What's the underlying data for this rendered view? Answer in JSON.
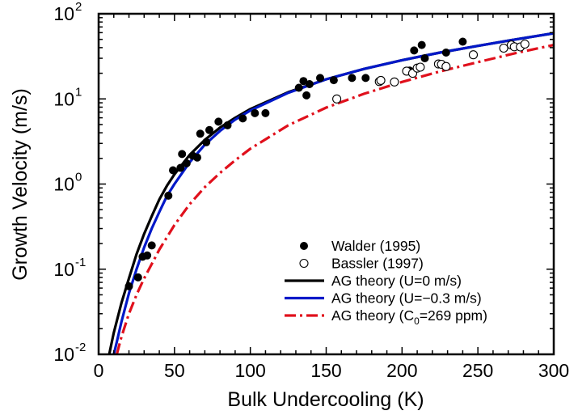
{
  "chart_data": {
    "type": "scatter",
    "title": "",
    "xlabel": "Bulk Undercooling (K)",
    "ylabel": "Growth Velocity (m/s)",
    "xlim": [
      0,
      300
    ],
    "ylim": [
      0.01,
      100
    ],
    "yscale": "log",
    "grid": false,
    "legend_position": "bottom-right",
    "x_ticks": [
      0,
      50,
      100,
      150,
      200,
      250,
      300
    ],
    "x_tick_labels": [
      "0",
      "50",
      "100",
      "150",
      "200",
      "250",
      "300"
    ],
    "y_ticks": [
      0.01,
      0.1,
      1,
      10,
      100
    ],
    "y_tick_labels": [
      {
        "base": "10",
        "exp": "-2"
      },
      {
        "base": "10",
        "exp": "-1"
      },
      {
        "base": "10",
        "exp": "0"
      },
      {
        "base": "10",
        "exp": "1"
      },
      {
        "base": "10",
        "exp": "2"
      }
    ],
    "series": [
      {
        "name": "Walder (1995)",
        "kind": "scatter",
        "marker": "filled-circle",
        "color": "#000000",
        "points": [
          [
            20,
            0.063
          ],
          [
            26,
            0.08
          ],
          [
            29,
            0.14
          ],
          [
            32,
            0.145
          ],
          [
            35,
            0.19
          ],
          [
            46,
            0.73
          ],
          [
            49,
            1.45
          ],
          [
            54,
            1.55
          ],
          [
            55,
            2.25
          ],
          [
            58,
            1.75
          ],
          [
            62,
            2.15
          ],
          [
            65,
            2.05
          ],
          [
            67,
            3.9
          ],
          [
            71,
            3.1
          ],
          [
            73,
            4.3
          ],
          [
            79,
            5.4
          ],
          [
            85,
            4.9
          ],
          [
            95,
            5.9
          ],
          [
            103,
            6.8
          ],
          [
            110,
            6.8
          ],
          [
            132,
            13.5
          ],
          [
            135,
            16.2
          ],
          [
            137,
            11.0
          ],
          [
            139,
            14.9
          ],
          [
            146,
            17.6
          ],
          [
            155,
            16.6
          ],
          [
            167,
            17.6
          ],
          [
            176,
            17.6
          ],
          [
            205,
            21.5
          ],
          [
            208,
            37.0
          ],
          [
            212,
            23.5
          ],
          [
            213,
            43.0
          ],
          [
            215,
            30.0
          ],
          [
            229,
            35.0
          ],
          [
            240,
            47.0
          ]
        ]
      },
      {
        "name": "Bassler (1997)",
        "kind": "scatter",
        "marker": "open-circle",
        "color": "#000000",
        "points": [
          [
            157,
            10.0
          ],
          [
            185,
            16.0
          ],
          [
            186,
            16.5
          ],
          [
            195,
            15.8
          ],
          [
            203,
            21.2
          ],
          [
            207,
            20.0
          ],
          [
            210,
            23.0
          ],
          [
            212,
            23.6
          ],
          [
            224,
            25.7
          ],
          [
            226,
            25.5
          ],
          [
            229,
            24.0
          ],
          [
            247,
            33.0
          ],
          [
            267,
            39.5
          ],
          [
            272,
            43.0
          ],
          [
            274,
            41.0
          ],
          [
            278,
            40.8
          ],
          [
            281,
            44.0
          ]
        ]
      },
      {
        "name": "AG theory (U=0 m/s)",
        "kind": "line",
        "color": "#000000",
        "dash": "",
        "points": [
          [
            7,
            0.01
          ],
          [
            10,
            0.018
          ],
          [
            15,
            0.04
          ],
          [
            20,
            0.078
          ],
          [
            25,
            0.15
          ],
          [
            30,
            0.26
          ],
          [
            35,
            0.42
          ],
          [
            40,
            0.66
          ],
          [
            45,
            0.95
          ],
          [
            50,
            1.3
          ],
          [
            60,
            2.2
          ],
          [
            70,
            3.3
          ],
          [
            80,
            4.6
          ],
          [
            90,
            6.0
          ],
          [
            100,
            7.6
          ],
          [
            125,
            12.0
          ],
          [
            150,
            17.0
          ],
          [
            175,
            22.5
          ],
          [
            200,
            28.5
          ],
          [
            225,
            35.0
          ],
          [
            250,
            42.0
          ],
          [
            275,
            50.0
          ],
          [
            300,
            59.0
          ]
        ]
      },
      {
        "name": "AG theory (U=−0.3 m/s)",
        "kind": "line",
        "color": "#0018c8",
        "dash": "",
        "points": [
          [
            10,
            0.01
          ],
          [
            12,
            0.014
          ],
          [
            15,
            0.024
          ],
          [
            20,
            0.052
          ],
          [
            25,
            0.1
          ],
          [
            30,
            0.18
          ],
          [
            35,
            0.3
          ],
          [
            40,
            0.47
          ],
          [
            45,
            0.72
          ],
          [
            50,
            1.0
          ],
          [
            60,
            1.8
          ],
          [
            70,
            2.9
          ],
          [
            80,
            4.2
          ],
          [
            90,
            5.7
          ],
          [
            100,
            7.3
          ],
          [
            125,
            11.8
          ],
          [
            150,
            17.0
          ],
          [
            175,
            22.5
          ],
          [
            200,
            28.5
          ],
          [
            225,
            35.0
          ],
          [
            250,
            42.0
          ],
          [
            275,
            50.0
          ],
          [
            300,
            59.0
          ]
        ]
      },
      {
        "name": "AG theory (C₀=269 ppm)",
        "legend_main": "AG theory (C",
        "legend_sub": "0",
        "legend_tail": "=269 ppm)",
        "kind": "line",
        "color": "#e0101c",
        "dash": "14,5,3,5",
        "points": [
          [
            12,
            0.01
          ],
          [
            15,
            0.016
          ],
          [
            20,
            0.03
          ],
          [
            25,
            0.05
          ],
          [
            30,
            0.078
          ],
          [
            35,
            0.115
          ],
          [
            40,
            0.17
          ],
          [
            50,
            0.33
          ],
          [
            60,
            0.58
          ],
          [
            70,
            0.92
          ],
          [
            80,
            1.35
          ],
          [
            90,
            1.9
          ],
          [
            100,
            2.6
          ],
          [
            125,
            4.9
          ],
          [
            150,
            7.9
          ],
          [
            175,
            11.5
          ],
          [
            200,
            15.8
          ],
          [
            225,
            21.0
          ],
          [
            250,
            27.0
          ],
          [
            275,
            34.5
          ],
          [
            300,
            43.0
          ]
        ]
      }
    ]
  }
}
